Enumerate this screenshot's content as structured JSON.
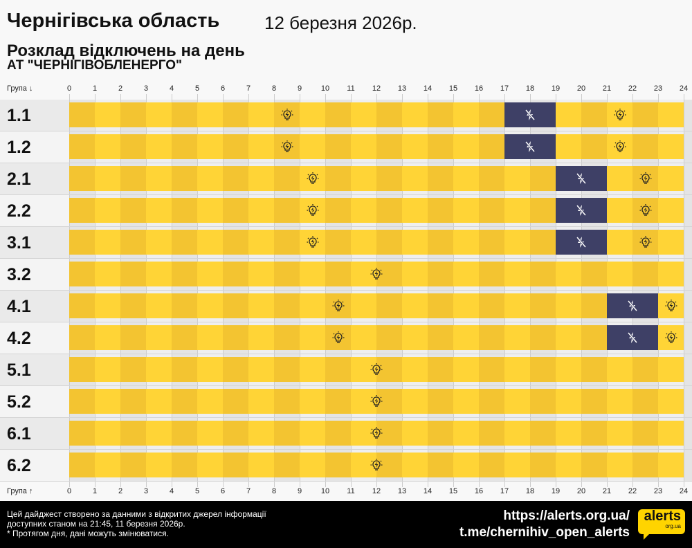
{
  "header": {
    "title": "Чернігівська область",
    "date": "12 березня 2026р.",
    "subtitle": "Розклад відключень на день",
    "company": "АТ \"ЧЕРНІГІВОБЛЕНЕРГО\""
  },
  "axis": {
    "top_label": "Група ↓",
    "bottom_label": "Група ↑",
    "hours": [
      "0",
      "1",
      "2",
      "3",
      "4",
      "5",
      "6",
      "7",
      "8",
      "9",
      "10",
      "11",
      "12",
      "13",
      "14",
      "15",
      "16",
      "17",
      "18",
      "19",
      "20",
      "21",
      "22",
      "23",
      "24"
    ]
  },
  "colors": {
    "on_even": "#f3c431",
    "on_odd": "#ffd436",
    "outage": "#3e4066"
  },
  "groups": [
    {
      "name": "1.1",
      "outages": [
        [
          17,
          19
        ]
      ]
    },
    {
      "name": "1.2",
      "outages": [
        [
          17,
          19
        ]
      ]
    },
    {
      "name": "2.1",
      "outages": [
        [
          19,
          21
        ]
      ]
    },
    {
      "name": "2.2",
      "outages": [
        [
          19,
          21
        ]
      ]
    },
    {
      "name": "3.1",
      "outages": [
        [
          19,
          21
        ]
      ]
    },
    {
      "name": "3.2",
      "outages": []
    },
    {
      "name": "4.1",
      "outages": [
        [
          21,
          23
        ]
      ]
    },
    {
      "name": "4.2",
      "outages": [
        [
          21,
          23
        ]
      ]
    },
    {
      "name": "5.1",
      "outages": []
    },
    {
      "name": "5.2",
      "outages": []
    },
    {
      "name": "6.1",
      "outages": []
    },
    {
      "name": "6.2",
      "outages": []
    }
  ],
  "footer": {
    "note": "Цей дайджест створено за данними з відкритих джерел інформації\nдоступних станом на 21:45, 11 березня 2026р.\n* Протягом дня, дані можуть змінюватися.",
    "url": "https://alerts.org.ua/",
    "telegram": "t.me/chernihiv_open_alerts",
    "logo_text": "alerts",
    "logo_sub": "org.ua"
  }
}
